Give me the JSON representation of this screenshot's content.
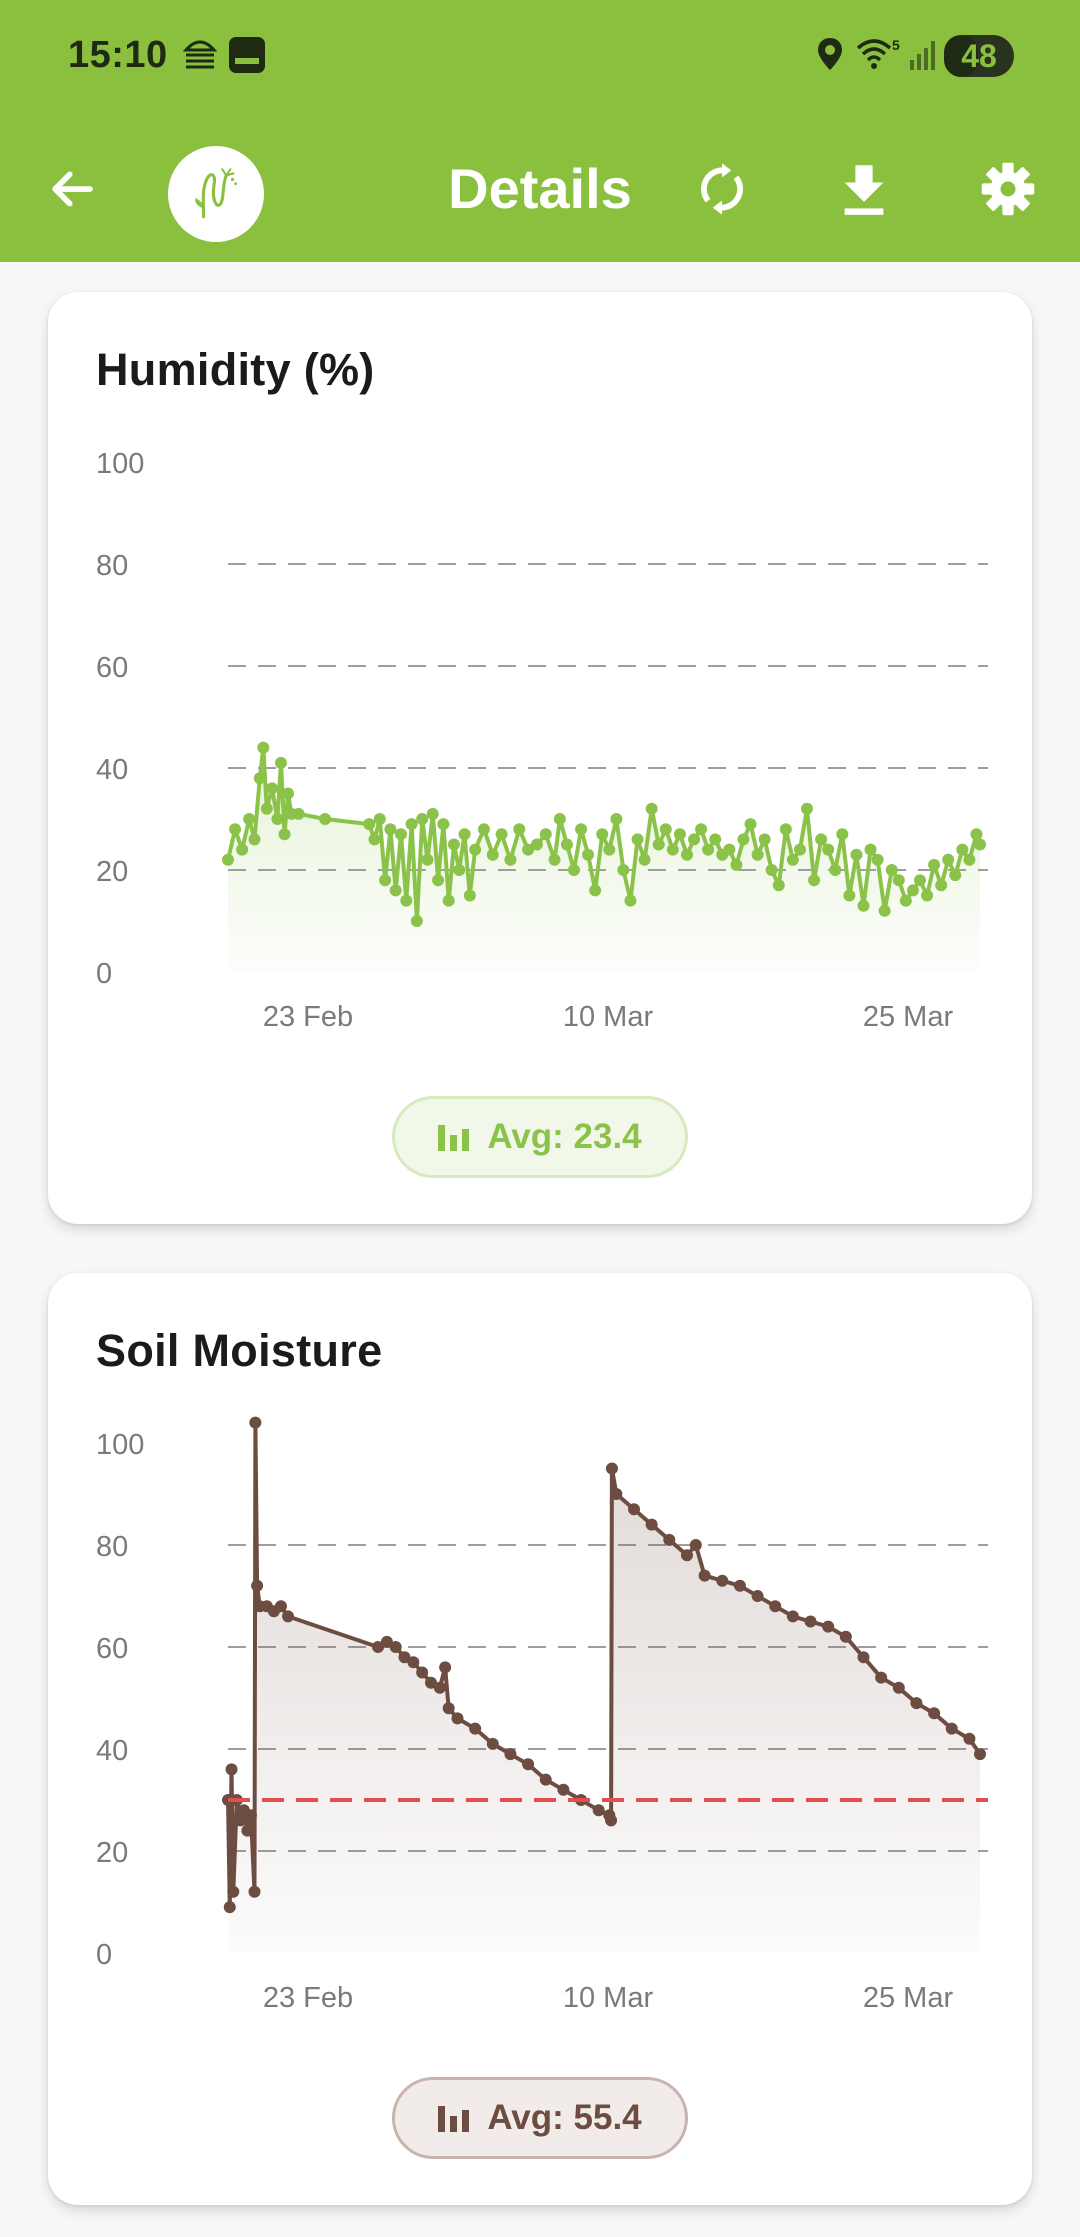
{
  "status_bar": {
    "time": "15:10",
    "battery": "48",
    "battery_fraction": 0.48,
    "icons": [
      "weather-icon",
      "notification-icon",
      "location-icon",
      "wifi-5-icon",
      "signal-icon"
    ]
  },
  "app_bar": {
    "title": "Details",
    "icons": [
      "back-arrow-icon",
      "plant-logo-icon",
      "refresh-icon",
      "download-icon",
      "settings-gear-icon"
    ]
  },
  "colors": {
    "brand_green": "#8bc03f",
    "humidity_line": "#8bc34a",
    "soil_line": "#6d4c41",
    "threshold": "#e05050"
  },
  "cards": [
    {
      "title": "Humidity (%)",
      "avg_label": "Avg: 23.4",
      "chart_data": {
        "type": "line",
        "y_ticks": [
          "0",
          "20",
          "40",
          "60",
          "80",
          "100"
        ],
        "x_ticks": [
          "23 Feb",
          "10 Mar",
          "25 Mar"
        ],
        "ylim": [
          0,
          100
        ],
        "grid": "dashed horizontal at 20, 40, 60, 80",
        "series": [
          {
            "color": "#8bc34a",
            "points": [
              [
                0.0,
                22
              ],
              [
                0.4,
                28
              ],
              [
                0.8,
                24
              ],
              [
                1.2,
                30
              ],
              [
                1.5,
                26
              ],
              [
                1.8,
                38
              ],
              [
                2.0,
                44
              ],
              [
                2.2,
                32
              ],
              [
                2.5,
                36
              ],
              [
                2.8,
                30
              ],
              [
                3.0,
                41
              ],
              [
                3.2,
                27
              ],
              [
                3.4,
                35
              ],
              [
                3.6,
                31
              ],
              [
                4.0,
                31
              ],
              [
                5.5,
                30
              ],
              [
                8.0,
                29
              ],
              [
                8.3,
                26
              ],
              [
                8.6,
                30
              ],
              [
                8.9,
                18
              ],
              [
                9.2,
                28
              ],
              [
                9.5,
                16
              ],
              [
                9.8,
                27
              ],
              [
                10.1,
                14
              ],
              [
                10.4,
                29
              ],
              [
                10.7,
                10
              ],
              [
                11.0,
                30
              ],
              [
                11.3,
                22
              ],
              [
                11.6,
                31
              ],
              [
                11.9,
                18
              ],
              [
                12.2,
                29
              ],
              [
                12.5,
                14
              ],
              [
                12.8,
                25
              ],
              [
                13.1,
                20
              ],
              [
                13.4,
                27
              ],
              [
                13.7,
                15
              ],
              [
                14.0,
                24
              ],
              [
                14.5,
                28
              ],
              [
                15.0,
                23
              ],
              [
                15.5,
                27
              ],
              [
                16.0,
                22
              ],
              [
                16.5,
                28
              ],
              [
                17.0,
                24
              ],
              [
                17.5,
                25
              ],
              [
                18.0,
                27
              ],
              [
                18.5,
                22
              ],
              [
                18.8,
                30
              ],
              [
                19.2,
                25
              ],
              [
                19.6,
                20
              ],
              [
                20.0,
                28
              ],
              [
                20.4,
                23
              ],
              [
                20.8,
                16
              ],
              [
                21.2,
                27
              ],
              [
                21.6,
                24
              ],
              [
                22.0,
                30
              ],
              [
                22.4,
                20
              ],
              [
                22.8,
                14
              ],
              [
                23.2,
                26
              ],
              [
                23.6,
                22
              ],
              [
                24.0,
                32
              ],
              [
                24.4,
                25
              ],
              [
                24.8,
                28
              ],
              [
                25.2,
                24
              ],
              [
                25.6,
                27
              ],
              [
                26.0,
                23
              ],
              [
                26.4,
                26
              ],
              [
                26.8,
                28
              ],
              [
                27.2,
                24
              ],
              [
                27.6,
                26
              ],
              [
                28.0,
                23
              ],
              [
                28.4,
                24
              ],
              [
                28.8,
                21
              ],
              [
                29.2,
                26
              ],
              [
                29.6,
                29
              ],
              [
                30.0,
                23
              ],
              [
                30.4,
                26
              ],
              [
                30.8,
                20
              ],
              [
                31.2,
                17
              ],
              [
                31.6,
                28
              ],
              [
                32.0,
                22
              ],
              [
                32.4,
                24
              ],
              [
                32.8,
                32
              ],
              [
                33.2,
                18
              ],
              [
                33.6,
                26
              ],
              [
                34.0,
                24
              ],
              [
                34.4,
                20
              ],
              [
                34.8,
                27
              ],
              [
                35.2,
                15
              ],
              [
                35.6,
                23
              ],
              [
                36.0,
                13
              ],
              [
                36.4,
                24
              ],
              [
                36.8,
                22
              ],
              [
                37.2,
                12
              ],
              [
                37.6,
                20
              ],
              [
                38.0,
                18
              ],
              [
                38.4,
                14
              ],
              [
                38.8,
                16
              ],
              [
                39.2,
                18
              ],
              [
                39.6,
                15
              ],
              [
                40.0,
                21
              ],
              [
                40.4,
                17
              ],
              [
                40.8,
                22
              ],
              [
                41.2,
                19
              ],
              [
                41.6,
                24
              ],
              [
                42.0,
                22
              ],
              [
                42.4,
                27
              ],
              [
                42.6,
                25
              ]
            ]
          }
        ]
      }
    },
    {
      "title": "Soil Moisture",
      "avg_label": "Avg: 55.4",
      "chart_data": {
        "type": "line",
        "y_ticks": [
          "0",
          "20",
          "40",
          "60",
          "80",
          "100"
        ],
        "x_ticks": [
          "23 Feb",
          "10 Mar",
          "25 Mar"
        ],
        "ylim": [
          0,
          100
        ],
        "grid": "dashed horizontal at 20, 40, 60, 80",
        "threshold": 30,
        "series": [
          {
            "color": "#6d4c41",
            "points": [
              [
                0.0,
                30
              ],
              [
                0.1,
                9
              ],
              [
                0.2,
                36
              ],
              [
                0.3,
                12
              ],
              [
                0.5,
                30
              ],
              [
                0.7,
                26
              ],
              [
                0.9,
                28
              ],
              [
                1.1,
                24
              ],
              [
                1.3,
                27
              ],
              [
                1.5,
                12
              ],
              [
                1.55,
                104
              ],
              [
                1.65,
                72
              ],
              [
                1.8,
                68
              ],
              [
                2.2,
                68
              ],
              [
                2.6,
                67
              ],
              [
                3.0,
                68
              ],
              [
                3.4,
                66
              ],
              [
                8.5,
                60
              ],
              [
                9.0,
                61
              ],
              [
                9.5,
                60
              ],
              [
                10.0,
                58
              ],
              [
                10.5,
                57
              ],
              [
                11.0,
                55
              ],
              [
                11.5,
                53
              ],
              [
                12.0,
                52
              ],
              [
                12.3,
                56
              ],
              [
                12.5,
                48
              ],
              [
                13.0,
                46
              ],
              [
                14.0,
                44
              ],
              [
                15.0,
                41
              ],
              [
                16.0,
                39
              ],
              [
                17.0,
                37
              ],
              [
                18.0,
                34
              ],
              [
                19.0,
                32
              ],
              [
                20.0,
                30
              ],
              [
                21.0,
                28
              ],
              [
                21.6,
                27
              ],
              [
                21.7,
                26
              ],
              [
                21.75,
                95
              ],
              [
                22.0,
                90
              ],
              [
                23.0,
                87
              ],
              [
                24.0,
                84
              ],
              [
                25.0,
                81
              ],
              [
                26.0,
                78
              ],
              [
                26.5,
                80
              ],
              [
                27.0,
                74
              ],
              [
                28.0,
                73
              ],
              [
                29.0,
                72
              ],
              [
                30.0,
                70
              ],
              [
                31.0,
                68
              ],
              [
                32.0,
                66
              ],
              [
                33.0,
                65
              ],
              [
                34.0,
                64
              ],
              [
                35.0,
                62
              ],
              [
                36.0,
                58
              ],
              [
                37.0,
                54
              ],
              [
                38.0,
                52
              ],
              [
                39.0,
                49
              ],
              [
                40.0,
                47
              ],
              [
                41.0,
                44
              ],
              [
                42.0,
                42
              ],
              [
                42.6,
                39
              ]
            ]
          }
        ]
      }
    }
  ]
}
